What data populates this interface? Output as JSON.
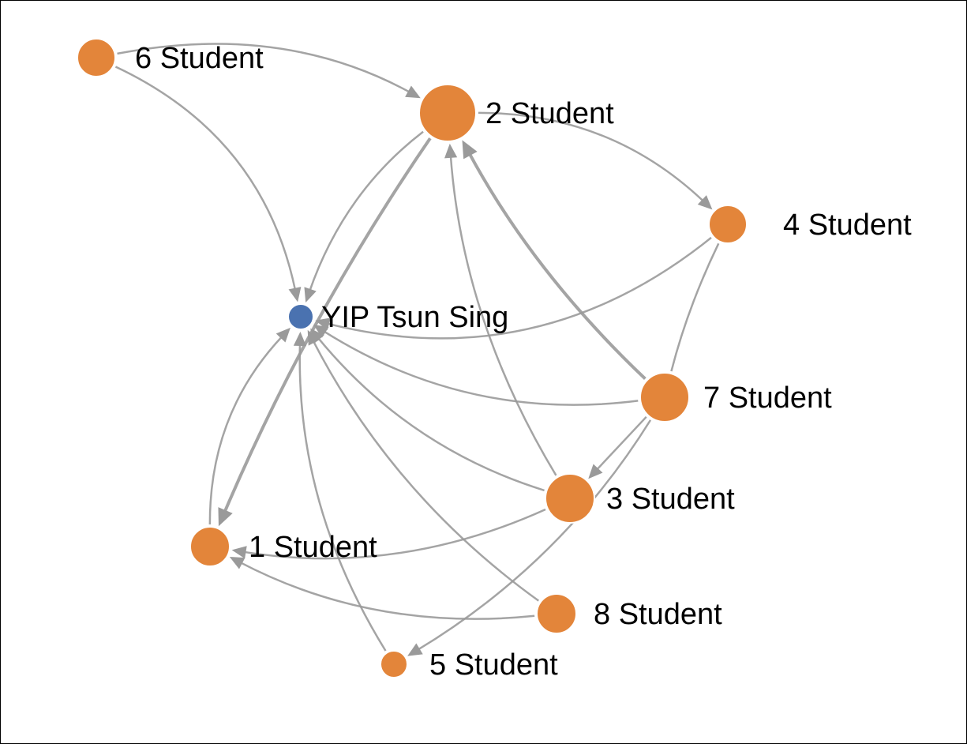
{
  "colors": {
    "student": "#e3853a",
    "teacher": "#4a72b0",
    "edge": "#9a9a9a"
  },
  "nodes": [
    {
      "id": "6",
      "label": "6 Student",
      "type": "student"
    },
    {
      "id": "2",
      "label": "2 Student",
      "type": "student"
    },
    {
      "id": "4",
      "label": "4 Student",
      "type": "student"
    },
    {
      "id": "yip",
      "label": "YIP Tsun Sing",
      "type": "teacher"
    },
    {
      "id": "7",
      "label": "7 Student",
      "type": "student"
    },
    {
      "id": "3",
      "label": "3 Student",
      "type": "student"
    },
    {
      "id": "1",
      "label": "1 Student",
      "type": "student"
    },
    {
      "id": "8",
      "label": "8 Student",
      "type": "student"
    },
    {
      "id": "5",
      "label": "5 Student",
      "type": "student"
    }
  ],
  "edges": [
    {
      "from": "6",
      "to": "2"
    },
    {
      "from": "6",
      "to": "yip"
    },
    {
      "from": "2",
      "to": "4"
    },
    {
      "from": "2",
      "to": "yip"
    },
    {
      "from": "2",
      "to": "1",
      "weight": 2
    },
    {
      "from": "4",
      "to": "yip"
    },
    {
      "from": "4",
      "to": "7",
      "arrow": false
    },
    {
      "from": "7",
      "to": "2",
      "weight": 2
    },
    {
      "from": "3",
      "to": "2"
    },
    {
      "from": "7",
      "to": "yip"
    },
    {
      "from": "7",
      "to": "3"
    },
    {
      "from": "7",
      "to": "5"
    },
    {
      "from": "3",
      "to": "yip"
    },
    {
      "from": "3",
      "to": "1"
    },
    {
      "from": "8",
      "to": "1"
    },
    {
      "from": "8",
      "to": "yip"
    },
    {
      "from": "5",
      "to": "yip"
    },
    {
      "from": "1",
      "to": "yip"
    }
  ]
}
